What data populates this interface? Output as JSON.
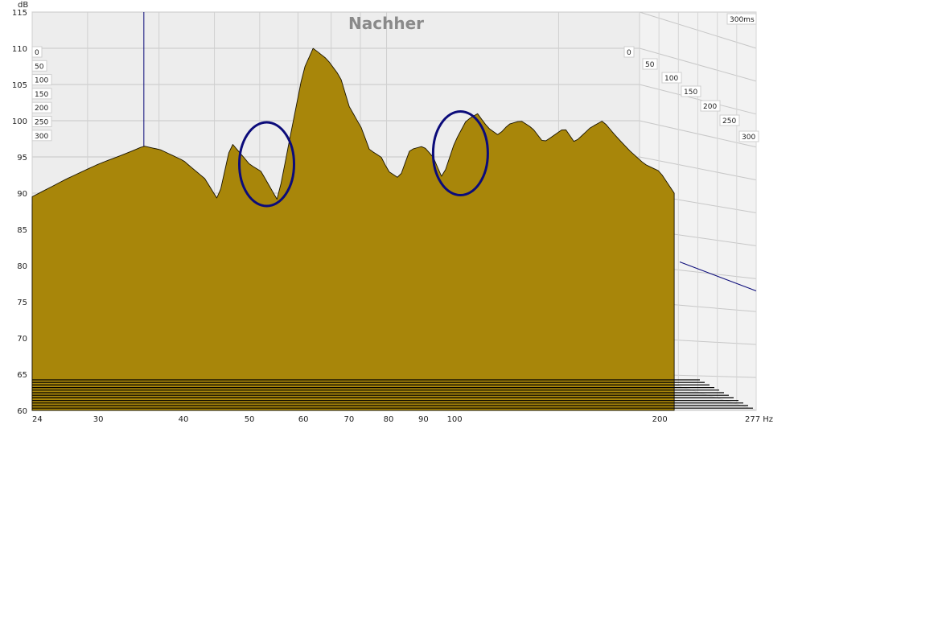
{
  "chart_data": {
    "type": "area",
    "title": "Nachher",
    "ylabel": "dB",
    "xunit": "Hz",
    "ylim": [
      60,
      115
    ],
    "xlim": [
      24,
      277
    ],
    "x_scale": "log",
    "y_ticks": [
      "115",
      "110",
      "105",
      "100",
      "95",
      "90",
      "85",
      "80",
      "75",
      "70",
      "65",
      "60"
    ],
    "x_ticks": [
      "24",
      "30",
      "40",
      "50",
      "60",
      "70",
      "80",
      "90",
      "100",
      "200",
      "277 Hz"
    ],
    "x_tick_values": [
      24,
      30,
      40,
      50,
      60,
      70,
      80,
      90,
      100,
      200,
      277
    ],
    "time_axis_label": "300ms",
    "time_labels_left": [
      "0",
      "50",
      "100",
      "150",
      "200",
      "250",
      "300"
    ],
    "time_labels_right": [
      "0",
      "50",
      "100",
      "150",
      "200",
      "250",
      "300"
    ],
    "time_slices_ms": [
      0,
      50,
      100,
      150,
      200,
      250,
      300
    ],
    "fill_color": "#a8860a",
    "line_color": "#1a1400",
    "marker_color": "#0b0b7a",
    "marker_line_x": 35,
    "front_curve": {
      "x": [
        24,
        27,
        30,
        33,
        35,
        37,
        40,
        43,
        45,
        47,
        50,
        52,
        55,
        58,
        60,
        62,
        65,
        68,
        70,
        73,
        75,
        78,
        80,
        83,
        86,
        90,
        93,
        96,
        100,
        104,
        108,
        112,
        116,
        120,
        125,
        130,
        135,
        140,
        145,
        150,
        158,
        165,
        172,
        180,
        190,
        200,
        210
      ],
      "y": [
        89.5,
        92,
        94,
        95.5,
        96.5,
        96,
        94.5,
        92,
        89,
        97,
        94,
        93,
        89,
        100,
        107,
        110,
        108.5,
        106,
        102,
        99,
        96,
        95,
        93,
        92,
        96,
        96.5,
        95,
        92,
        97,
        100,
        101,
        99,
        98,
        99.5,
        100,
        99,
        97,
        98,
        99,
        97,
        99,
        100,
        98,
        96,
        94,
        93,
        90
      ]
    },
    "annotations": [
      {
        "type": "ellipse",
        "center_hz": 53,
        "center_db": 94
      },
      {
        "type": "ellipse",
        "center_hz": 102,
        "center_db": 95.5
      }
    ]
  }
}
